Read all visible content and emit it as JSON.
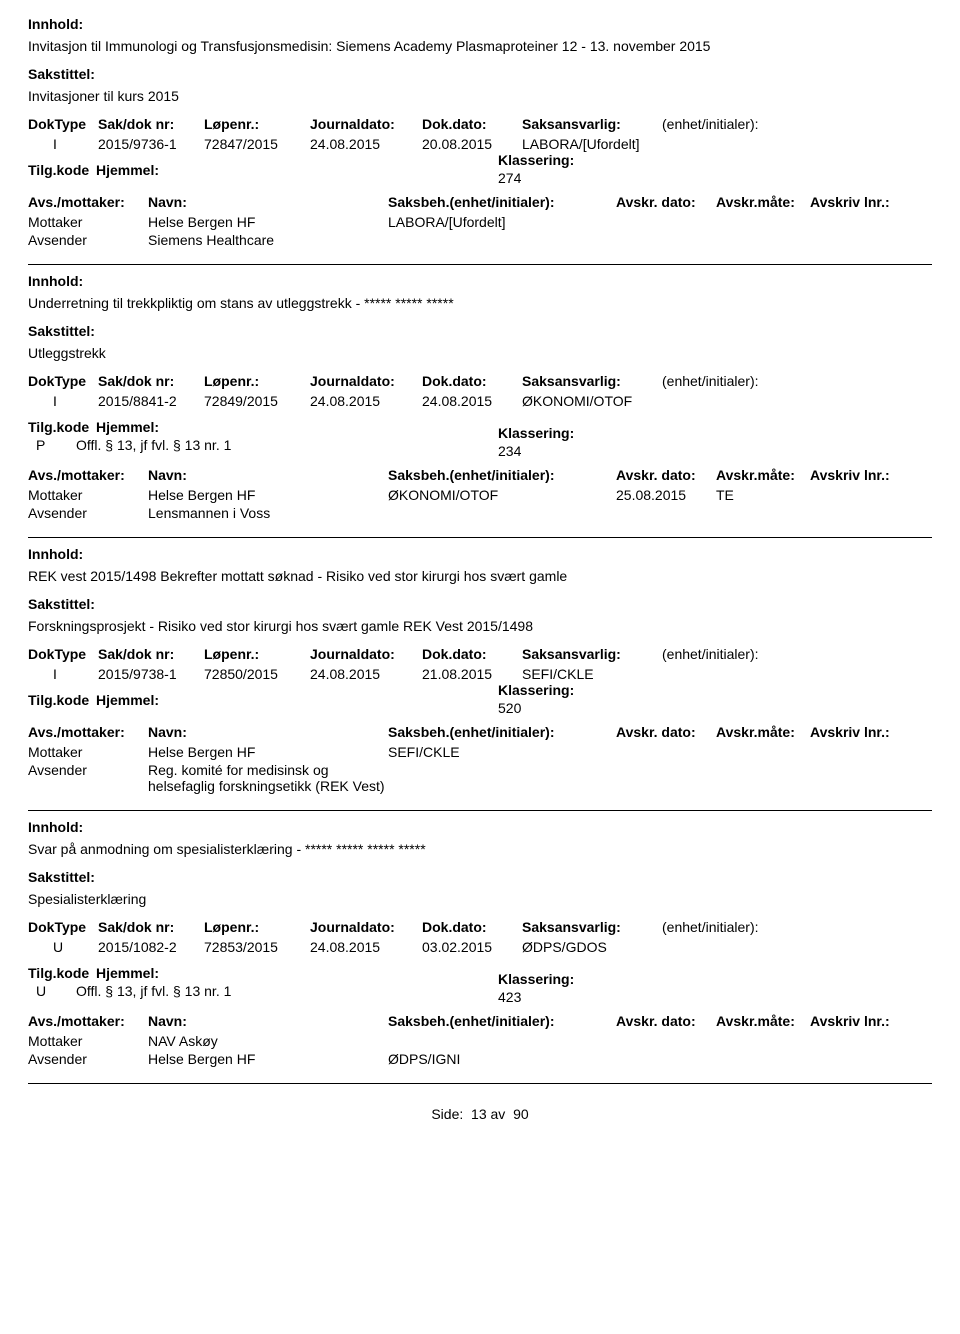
{
  "labels": {
    "innhold": "Innhold:",
    "sakstittel": "Sakstittel:",
    "doktype": "DokType",
    "saknr": "Sak/dok nr:",
    "lopenr": "Løpenr.:",
    "journaldato": "Journaldato:",
    "dokdato": "Dok.dato:",
    "saksansvarlig": "Saksansvarlig:",
    "enhet": "(enhet/initialer):",
    "tilgkode": "Tilg.kode",
    "hjemmel": "Hjemmel:",
    "klassering": "Klassering:",
    "avsmottaker": "Avs./mottaker:",
    "navn": "Navn:",
    "saksbeh": "Saksbeh.(enhet/initialer):",
    "avskrdato": "Avskr. dato:",
    "avskrmate": "Avskr.måte:",
    "avskrivlnr": "Avskriv lnr.:",
    "mottaker": "Mottaker",
    "avsender": "Avsender"
  },
  "footer": {
    "label": "Side:",
    "page": "13",
    "sep": "av",
    "total": "90"
  },
  "entries": [
    {
      "innhold": "Invitasjon til Immunologi og Transfusjonsmedisin: Siemens Academy Plasmaproteiner 12 - 13. november 2015",
      "sakstittel": "Invitasjoner til kurs 2015",
      "doktype": "I",
      "saknr": "2015/9736-1",
      "lopenr": "72847/2015",
      "jdato": "24.08.2015",
      "ddato": "20.08.2015",
      "saksan": "LABORA/[Ufordelt]",
      "hjcode": "",
      "hjtext": "",
      "klass": "274",
      "mottaker": "Helse Bergen HF",
      "msaksb": "LABORA/[Ufordelt]",
      "mdato": "",
      "mmate": "",
      "avsender": "Siemens Healthcare",
      "asaksb": ""
    },
    {
      "innhold": "Underretning til trekkpliktig om stans av utleggstrekk - ***** ***** *****",
      "sakstittel": "Utleggstrekk",
      "doktype": "I",
      "saknr": "2015/8841-2",
      "lopenr": "72849/2015",
      "jdato": "24.08.2015",
      "ddato": "24.08.2015",
      "saksan": "ØKONOMI/OTOF",
      "hjcode": "P",
      "hjtext": "Offl. § 13, jf fvl. § 13 nr. 1",
      "klass": "234",
      "mottaker": "Helse Bergen HF",
      "msaksb": "ØKONOMI/OTOF",
      "mdato": "25.08.2015",
      "mmate": "TE",
      "avsender": "Lensmannen i Voss",
      "asaksb": ""
    },
    {
      "innhold": "REK vest 2015/1498 Bekrefter mottatt søknad - Risiko ved stor kirurgi hos svært gamle",
      "sakstittel": "Forskningsprosjekt - Risiko ved stor kirurgi hos svært gamle REK Vest 2015/1498",
      "doktype": "I",
      "saknr": "2015/9738-1",
      "lopenr": "72850/2015",
      "jdato": "24.08.2015",
      "ddato": "21.08.2015",
      "saksan": "SEFI/CKLE",
      "hjcode": "",
      "hjtext": "",
      "klass": "520",
      "mottaker": "Helse Bergen HF",
      "msaksb": "SEFI/CKLE",
      "mdato": "",
      "mmate": "",
      "avsender": "Reg. komité for medisinsk og helsefaglig forskningsetikk (REK Vest)",
      "asaksb": ""
    },
    {
      "innhold": "Svar på anmodning om spesialisterklæring - ***** ***** ***** *****",
      "sakstittel": "Spesialisterklæring",
      "doktype": "U",
      "saknr": "2015/1082-2",
      "lopenr": "72853/2015",
      "jdato": "24.08.2015",
      "ddato": "03.02.2015",
      "saksan": "ØDPS/GDOS",
      "hjcode": "U",
      "hjtext": "Offl. § 13, jf fvl. § 13 nr. 1",
      "klass": "423",
      "mottaker": "NAV Askøy",
      "msaksb": "",
      "mdato": "",
      "mmate": "",
      "avsender": "Helse Bergen HF",
      "asaksb": "ØDPS/IGNI"
    }
  ]
}
